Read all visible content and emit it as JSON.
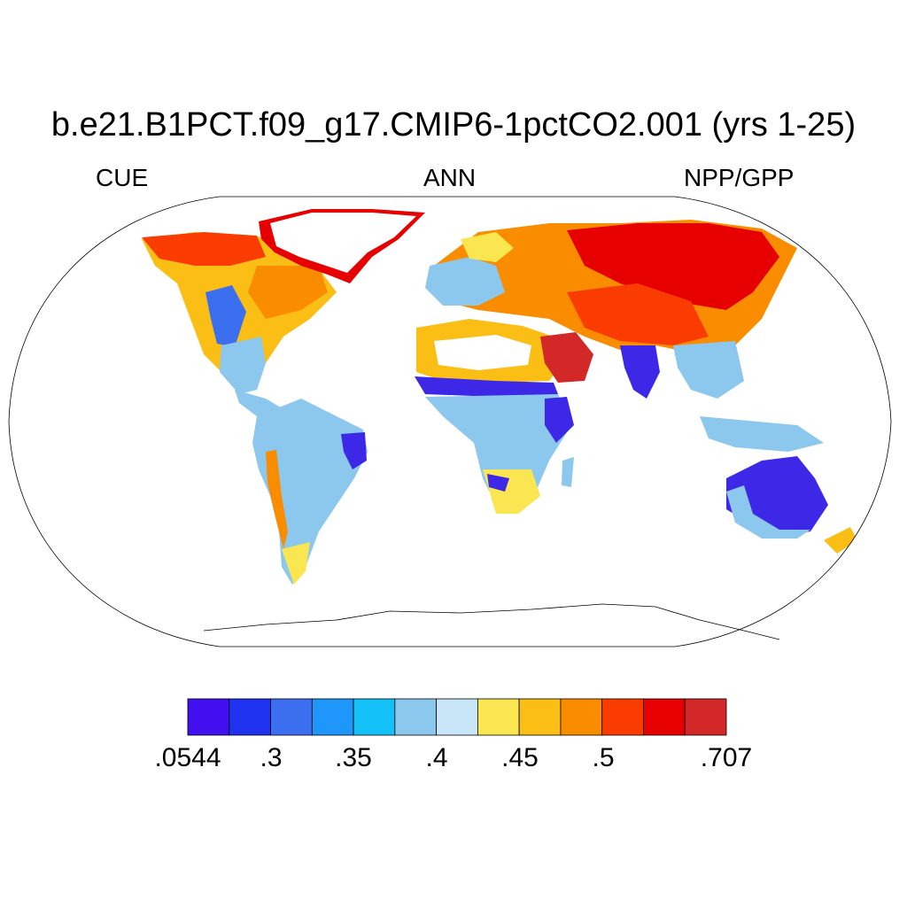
{
  "title": "b.e21.B1PCT.f09_g17.CMIP6-1pctCO2.001 (yrs 1-25)",
  "subtitles": {
    "left": "CUE",
    "center": "ANN",
    "right": "NPP/GPP"
  },
  "map": {
    "projection": "robinson",
    "coastlines": true
  },
  "colorbar": {
    "colors": [
      "#4210f0",
      "#1e32f0",
      "#3c6ef0",
      "#1e96fa",
      "#14c0f8",
      "#8cc8ee",
      "#c8e6f8",
      "#fae650",
      "#fabe14",
      "#fa8c00",
      "#fa3c00",
      "#e60000",
      "#d22828"
    ],
    "labels": [
      ".0544",
      ".3",
      ".35",
      ".4",
      ".45",
      ".5",
      ".707"
    ]
  },
  "legend_colors": {
    "low": "#3c28e6",
    "midlow": "#8cc8ee",
    "mid": "#fae650",
    "midhigh": "#fa8c00",
    "high": "#e60000"
  }
}
